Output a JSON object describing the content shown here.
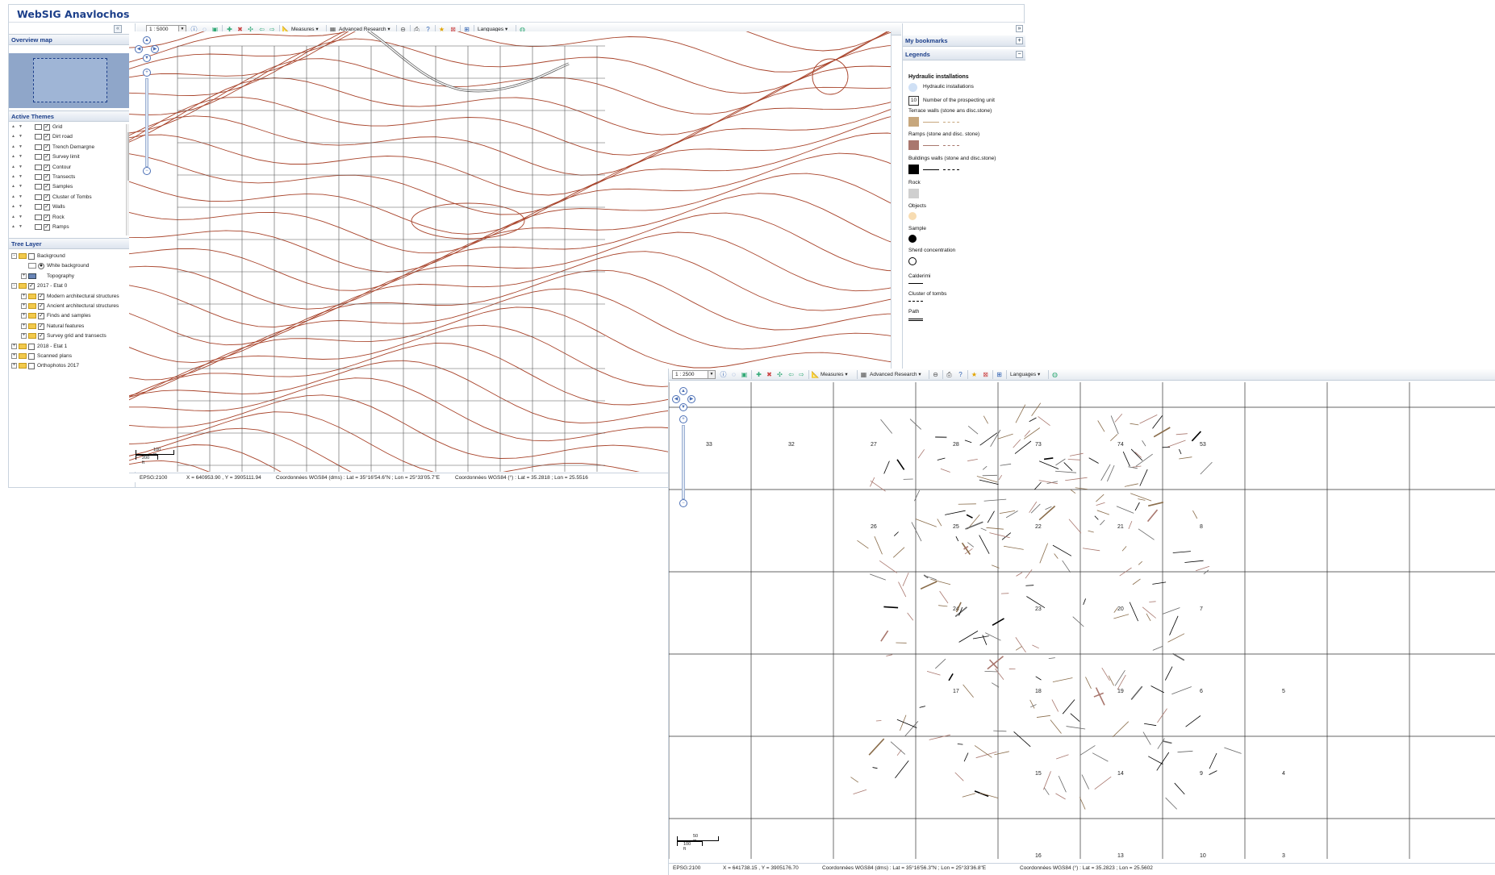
{
  "app": {
    "title": "WebSIG Anavlochos"
  },
  "left_panel": {
    "collapse_icon": "«",
    "overview_title": "Overview map",
    "themes_title": "Active Themes",
    "themes": [
      "Grid",
      "Dirt road",
      "Trench Demargne",
      "Survey limit",
      "Contour",
      "Transects",
      "Samples",
      "Cluster of Tombs",
      "Walls",
      "Rock",
      "Ramps"
    ],
    "tree_title": "Tree Layer",
    "tree": [
      {
        "label": "Background",
        "level": 0,
        "checked": false,
        "expand": "-",
        "kind": "folder"
      },
      {
        "label": "White background",
        "level": 1,
        "checked": true,
        "expand": "",
        "kind": "radio"
      },
      {
        "label": "Topography",
        "level": 1,
        "checked": false,
        "expand": "+",
        "kind": "layer"
      },
      {
        "label": "2017 - Etat 0",
        "level": 0,
        "checked": true,
        "expand": "-",
        "kind": "folder"
      },
      {
        "label": "Modern architectural structures",
        "level": 1,
        "checked": true,
        "expand": "+",
        "kind": "folder"
      },
      {
        "label": "Ancient architectural structures",
        "level": 1,
        "checked": true,
        "expand": "+",
        "kind": "folder"
      },
      {
        "label": "Finds and samples",
        "level": 1,
        "checked": true,
        "expand": "+",
        "kind": "folder"
      },
      {
        "label": "Natural features",
        "level": 1,
        "checked": true,
        "expand": "+",
        "kind": "folder"
      },
      {
        "label": "Survey grid and transects",
        "level": 1,
        "checked": true,
        "expand": "+",
        "kind": "folder"
      },
      {
        "label": "2018 - Etat 1",
        "level": 0,
        "checked": false,
        "expand": "+",
        "kind": "folder"
      },
      {
        "label": "Scanned plans",
        "level": 0,
        "checked": false,
        "expand": "+",
        "kind": "folder"
      },
      {
        "label": "Orthophotos 2017",
        "level": 0,
        "checked": false,
        "expand": "+",
        "kind": "folder"
      }
    ]
  },
  "toolbar1": {
    "scale": "1 : 5000",
    "measures": "Measures",
    "advanced": "Advanced Research",
    "languages": "Languages"
  },
  "toolbar2": {
    "scale": "1 : 2500",
    "measures": "Measures",
    "advanced": "Advanced Research",
    "languages": "Languages"
  },
  "right_panel": {
    "expand_icon": "»",
    "bookmarks": "My bookmarks",
    "legends": "Legends",
    "legend": {
      "hydraulic_title": "Hydraulic installations",
      "hydraulic": "Hydraulic installations",
      "unit_num": "10",
      "unit_label": "Number of the prospecting unit",
      "terrace": "Terrace walls (stone ans disc.stone)",
      "ramps": "Ramps (stone and disc. stone)",
      "buildings": "Buildings walls (stone and disc.stone)",
      "rock": "Rock",
      "objects": "Objects",
      "sample": "Sample",
      "sherd": "Sherd concentration",
      "calderimi": "Calderimi",
      "tombs": "Cluster of tombs",
      "path": "Path"
    }
  },
  "map1": {
    "scale_m": "100 m",
    "scale_ft": "200 ft"
  },
  "status1": {
    "epsg": "EPSG:2100",
    "xy": "X = 640953.90 , Y = 3905111.94",
    "dms": "Coordonnées WGS84 (dms) : Lat = 35°16'54.6\"N ; Lon = 25°33'05.7\"E",
    "deg": "Coordonnées WGS84 (°) : Lat = 35.2818 ; Lon = 25.5516"
  },
  "map2": {
    "scale_m": "50 m",
    "scale_ft": "100 ft",
    "cells": [
      "33",
      "32",
      "27",
      "28",
      "73",
      "74",
      "53",
      "26",
      "25",
      "22",
      "21",
      "8",
      "24",
      "23",
      "20",
      "7",
      "17",
      "18",
      "19",
      "6",
      "5",
      "15",
      "14",
      "9",
      "4",
      "16",
      "13",
      "10",
      "3"
    ]
  },
  "status2": {
    "epsg": "EPSG:2100",
    "xy": "X = 641738.15 , Y = 3905176.70",
    "dms": "Coordonnées WGS84 (dms) : Lat = 35°16'56.3\"N ; Lon = 25°33'36.8\"E",
    "deg": "Coordonnées WGS84 (°) : Lat = 35.2823 ; Lon = 25.5602"
  },
  "colors": {
    "contour": "#a8432a",
    "title": "#1c3f8a",
    "overview": "#8fa6c9",
    "terrace": "#c7a77d",
    "ramp": "#a9776e",
    "rock": "#cfcfcf",
    "objects": "#f7dcb2",
    "hydraulic": "#cfe0f5"
  },
  "icons": [
    "info-icon",
    "pan-icon",
    "zoom-box-icon",
    "zoom-in-icon",
    "zoom-out-icon",
    "full-extent-icon",
    "previous-icon",
    "next-icon",
    "measure-icon",
    "research-icon",
    "link-icon",
    "print-icon",
    "help-icon",
    "bookmark-star-icon",
    "clear-icon",
    "grid-icon",
    "globe-icon"
  ]
}
